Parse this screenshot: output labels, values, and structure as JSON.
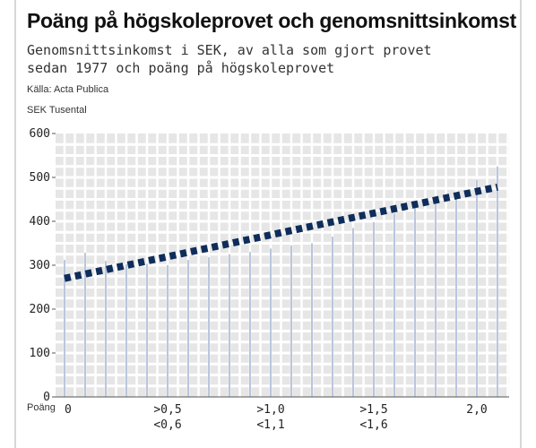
{
  "header": {
    "title": "Poäng på högskoleprovet och genomsnittsinkomst",
    "subtitle_line1": "Genomsnittsinkomst i SEK, av alla som gjort provet",
    "subtitle_line2": "sedan 1977 och poäng på högskoleprovet",
    "source": "Källa: Acta Publica",
    "unit": "SEK Tusental"
  },
  "chart_data": {
    "type": "bar",
    "title": "Poäng på högskoleprovet och genomsnittsinkomst",
    "xlabel": "Poäng",
    "ylabel": "SEK Tusental",
    "ylim": [
      0,
      600
    ],
    "yticks": [
      0,
      100,
      200,
      300,
      400,
      500,
      600
    ],
    "grid": true,
    "x_tick_labels": [
      {
        "index": 0,
        "line1": "0",
        "line2": ""
      },
      {
        "index": 5,
        "line1": ">0,5",
        "line2": "<0,6"
      },
      {
        "index": 10,
        "line1": ">1,0",
        "line2": "<1,1"
      },
      {
        "index": 15,
        "line1": ">1,5",
        "line2": "<1,6"
      },
      {
        "index": 20,
        "line1": "2,0",
        "line2": ""
      }
    ],
    "values": [
      312,
      328,
      310,
      302,
      303,
      300,
      312,
      318,
      325,
      330,
      338,
      345,
      350,
      365,
      385,
      398,
      418,
      432,
      448,
      462,
      495,
      525
    ],
    "trend": {
      "start": 270,
      "end": 478,
      "color": "#0f2d5a"
    },
    "colors": {
      "bar": "#a9b7d6",
      "grid_band": "#e6e6e6",
      "grid_line": "#ffffff"
    }
  }
}
